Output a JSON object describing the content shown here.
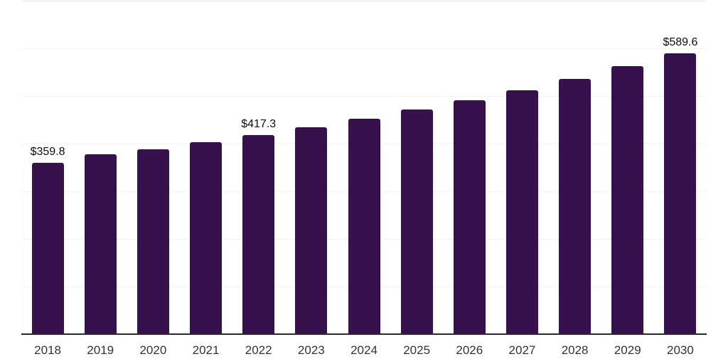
{
  "chart_data": {
    "type": "bar",
    "title": "",
    "xlabel": "",
    "ylabel": "",
    "categories": [
      "2018",
      "2019",
      "2020",
      "2021",
      "2022",
      "2023",
      "2024",
      "2025",
      "2026",
      "2027",
      "2028",
      "2029",
      "2030"
    ],
    "values": [
      359.8,
      378.1,
      388.2,
      402.6,
      417.3,
      433.9,
      452.2,
      471.2,
      491.1,
      512.4,
      536.3,
      563.2,
      589.6
    ],
    "bar_labels": [
      "$359.8",
      null,
      null,
      null,
      "$417.3",
      null,
      null,
      null,
      null,
      null,
      null,
      null,
      "$589.6"
    ],
    "ylim": [
      0,
      700
    ],
    "grid_step": 100,
    "grid_on": true,
    "y_tick_labels_visible": false,
    "legend_position": "none"
  },
  "style": {
    "bar_color": "#36114b",
    "axis_color": "#2b2b2b",
    "grid_color": "#f2f2f2",
    "top_grid_color": "#e4e4e4",
    "value_label_color": "#0d0d0d",
    "tick_label_color": "#333333",
    "background_color": "#ffffff"
  }
}
